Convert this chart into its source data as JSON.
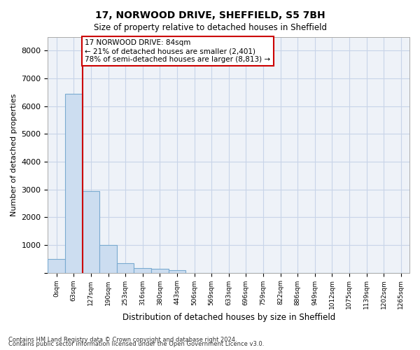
{
  "title1": "17, NORWOOD DRIVE, SHEFFIELD, S5 7BH",
  "title2": "Size of property relative to detached houses in Sheffield",
  "xlabel": "Distribution of detached houses by size in Sheffield",
  "ylabel": "Number of detached properties",
  "footnote1": "Contains HM Land Registry data © Crown copyright and database right 2024.",
  "footnote2": "Contains public sector information licensed under the Open Government Licence v3.0.",
  "bar_color": "#ccddf0",
  "bar_edge_color": "#7aaad0",
  "categories": [
    "0sqm",
    "63sqm",
    "127sqm",
    "190sqm",
    "253sqm",
    "316sqm",
    "380sqm",
    "443sqm",
    "506sqm",
    "569sqm",
    "633sqm",
    "696sqm",
    "759sqm",
    "822sqm",
    "886sqm",
    "949sqm",
    "1012sqm",
    "1075sqm",
    "1139sqm",
    "1202sqm",
    "1265sqm"
  ],
  "values": [
    500,
    6450,
    2950,
    1000,
    350,
    175,
    130,
    90,
    0,
    0,
    0,
    0,
    0,
    0,
    0,
    0,
    0,
    0,
    0,
    0,
    0
  ],
  "ylim": [
    0,
    8500
  ],
  "yticks": [
    0,
    1000,
    2000,
    3000,
    4000,
    5000,
    6000,
    7000,
    8000
  ],
  "annotation_title": "17 NORWOOD DRIVE: 84sqm",
  "annotation_line1": "← 21% of detached houses are smaller (2,401)",
  "annotation_line2": "78% of semi-detached houses are larger (8,813) →",
  "box_color": "#cc0000",
  "grid_color": "#c8d4e8",
  "bg_color": "#eef2f8"
}
